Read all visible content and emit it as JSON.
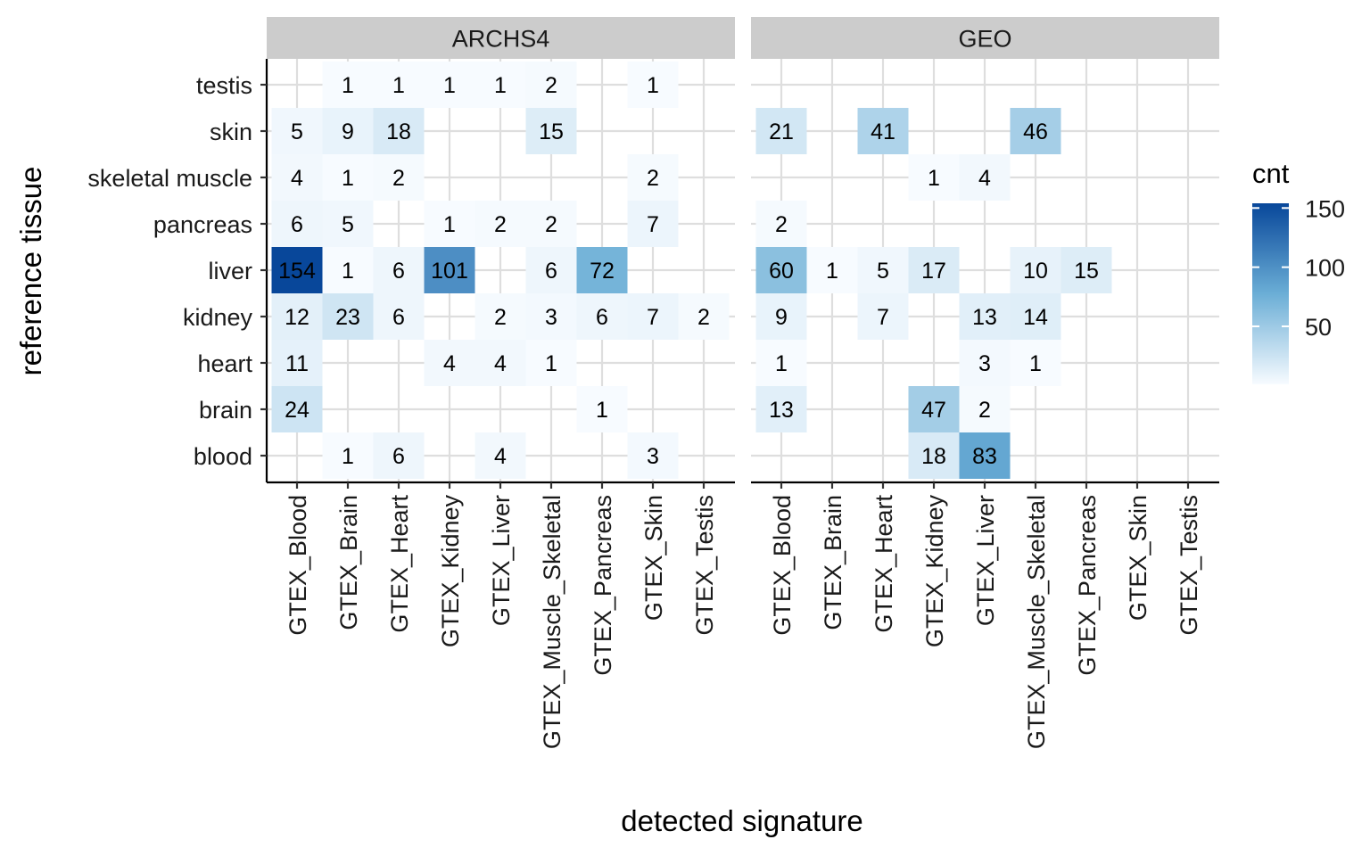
{
  "chart_data": {
    "type": "heatmap",
    "facets": [
      "ARCHS4",
      "GEO"
    ],
    "x_categories": [
      "GTEX_Blood",
      "GTEX_Brain",
      "GTEX_Heart",
      "GTEX_Kidney",
      "GTEX_Liver",
      "GTEX_Muscle_Skeletal",
      "GTEX_Pancreas",
      "GTEX_Skin",
      "GTEX_Testis"
    ],
    "y_categories": [
      "blood",
      "brain",
      "heart",
      "kidney",
      "liver",
      "pancreas",
      "skeletal muscle",
      "skin",
      "testis"
    ],
    "xlabel": "detected signature",
    "ylabel": "reference tissue",
    "legend": {
      "title": "cnt",
      "ticks": [
        50,
        100,
        150
      ],
      "range": [
        1,
        154
      ],
      "low_color": "#f7fbff",
      "high_color": "#08479a",
      "placement": "right"
    },
    "grid": true,
    "cells": {
      "ARCHS4": [
        {
          "y": "testis",
          "x": "GTEX_Brain",
          "value": 1
        },
        {
          "y": "testis",
          "x": "GTEX_Heart",
          "value": 1
        },
        {
          "y": "testis",
          "x": "GTEX_Kidney",
          "value": 1
        },
        {
          "y": "testis",
          "x": "GTEX_Liver",
          "value": 1
        },
        {
          "y": "testis",
          "x": "GTEX_Muscle_Skeletal",
          "value": 2
        },
        {
          "y": "testis",
          "x": "GTEX_Skin",
          "value": 1
        },
        {
          "y": "skin",
          "x": "GTEX_Blood",
          "value": 5
        },
        {
          "y": "skin",
          "x": "GTEX_Brain",
          "value": 9
        },
        {
          "y": "skin",
          "x": "GTEX_Heart",
          "value": 18
        },
        {
          "y": "skin",
          "x": "GTEX_Muscle_Skeletal",
          "value": 15
        },
        {
          "y": "skeletal muscle",
          "x": "GTEX_Blood",
          "value": 4
        },
        {
          "y": "skeletal muscle",
          "x": "GTEX_Brain",
          "value": 1
        },
        {
          "y": "skeletal muscle",
          "x": "GTEX_Heart",
          "value": 2
        },
        {
          "y": "skeletal muscle",
          "x": "GTEX_Skin",
          "value": 2
        },
        {
          "y": "pancreas",
          "x": "GTEX_Blood",
          "value": 6
        },
        {
          "y": "pancreas",
          "x": "GTEX_Brain",
          "value": 5
        },
        {
          "y": "pancreas",
          "x": "GTEX_Kidney",
          "value": 1
        },
        {
          "y": "pancreas",
          "x": "GTEX_Liver",
          "value": 2
        },
        {
          "y": "pancreas",
          "x": "GTEX_Muscle_Skeletal",
          "value": 2
        },
        {
          "y": "pancreas",
          "x": "GTEX_Skin",
          "value": 7
        },
        {
          "y": "liver",
          "x": "GTEX_Blood",
          "value": 154
        },
        {
          "y": "liver",
          "x": "GTEX_Brain",
          "value": 1
        },
        {
          "y": "liver",
          "x": "GTEX_Heart",
          "value": 6
        },
        {
          "y": "liver",
          "x": "GTEX_Kidney",
          "value": 101
        },
        {
          "y": "liver",
          "x": "GTEX_Muscle_Skeletal",
          "value": 6
        },
        {
          "y": "liver",
          "x": "GTEX_Pancreas",
          "value": 72
        },
        {
          "y": "kidney",
          "x": "GTEX_Blood",
          "value": 12
        },
        {
          "y": "kidney",
          "x": "GTEX_Brain",
          "value": 23
        },
        {
          "y": "kidney",
          "x": "GTEX_Heart",
          "value": 6
        },
        {
          "y": "kidney",
          "x": "GTEX_Liver",
          "value": 2
        },
        {
          "y": "kidney",
          "x": "GTEX_Muscle_Skeletal",
          "value": 3
        },
        {
          "y": "kidney",
          "x": "GTEX_Pancreas",
          "value": 6
        },
        {
          "y": "kidney",
          "x": "GTEX_Skin",
          "value": 7
        },
        {
          "y": "kidney",
          "x": "GTEX_Testis",
          "value": 2
        },
        {
          "y": "heart",
          "x": "GTEX_Blood",
          "value": 11
        },
        {
          "y": "heart",
          "x": "GTEX_Kidney",
          "value": 4
        },
        {
          "y": "heart",
          "x": "GTEX_Liver",
          "value": 4
        },
        {
          "y": "heart",
          "x": "GTEX_Muscle_Skeletal",
          "value": 1
        },
        {
          "y": "brain",
          "x": "GTEX_Blood",
          "value": 24
        },
        {
          "y": "brain",
          "x": "GTEX_Pancreas",
          "value": 1
        },
        {
          "y": "blood",
          "x": "GTEX_Brain",
          "value": 1
        },
        {
          "y": "blood",
          "x": "GTEX_Heart",
          "value": 6
        },
        {
          "y": "blood",
          "x": "GTEX_Liver",
          "value": 4
        },
        {
          "y": "blood",
          "x": "GTEX_Skin",
          "value": 3
        }
      ],
      "GEO": [
        {
          "y": "skin",
          "x": "GTEX_Blood",
          "value": 21
        },
        {
          "y": "skin",
          "x": "GTEX_Heart",
          "value": 41
        },
        {
          "y": "skin",
          "x": "GTEX_Muscle_Skeletal",
          "value": 46
        },
        {
          "y": "skeletal muscle",
          "x": "GTEX_Kidney",
          "value": 1
        },
        {
          "y": "skeletal muscle",
          "x": "GTEX_Liver",
          "value": 4
        },
        {
          "y": "pancreas",
          "x": "GTEX_Blood",
          "value": 2
        },
        {
          "y": "liver",
          "x": "GTEX_Blood",
          "value": 60
        },
        {
          "y": "liver",
          "x": "GTEX_Brain",
          "value": 1
        },
        {
          "y": "liver",
          "x": "GTEX_Heart",
          "value": 5
        },
        {
          "y": "liver",
          "x": "GTEX_Kidney",
          "value": 17
        },
        {
          "y": "liver",
          "x": "GTEX_Muscle_Skeletal",
          "value": 10
        },
        {
          "y": "liver",
          "x": "GTEX_Pancreas",
          "value": 15
        },
        {
          "y": "kidney",
          "x": "GTEX_Blood",
          "value": 9
        },
        {
          "y": "kidney",
          "x": "GTEX_Heart",
          "value": 7
        },
        {
          "y": "kidney",
          "x": "GTEX_Liver",
          "value": 13
        },
        {
          "y": "kidney",
          "x": "GTEX_Muscle_Skeletal",
          "value": 14
        },
        {
          "y": "heart",
          "x": "GTEX_Blood",
          "value": 1
        },
        {
          "y": "heart",
          "x": "GTEX_Liver",
          "value": 3
        },
        {
          "y": "heart",
          "x": "GTEX_Muscle_Skeletal",
          "value": 1
        },
        {
          "y": "brain",
          "x": "GTEX_Blood",
          "value": 13
        },
        {
          "y": "brain",
          "x": "GTEX_Kidney",
          "value": 47
        },
        {
          "y": "brain",
          "x": "GTEX_Liver",
          "value": 2
        },
        {
          "y": "blood",
          "x": "GTEX_Kidney",
          "value": 18
        },
        {
          "y": "blood",
          "x": "GTEX_Liver",
          "value": 83
        }
      ]
    }
  }
}
